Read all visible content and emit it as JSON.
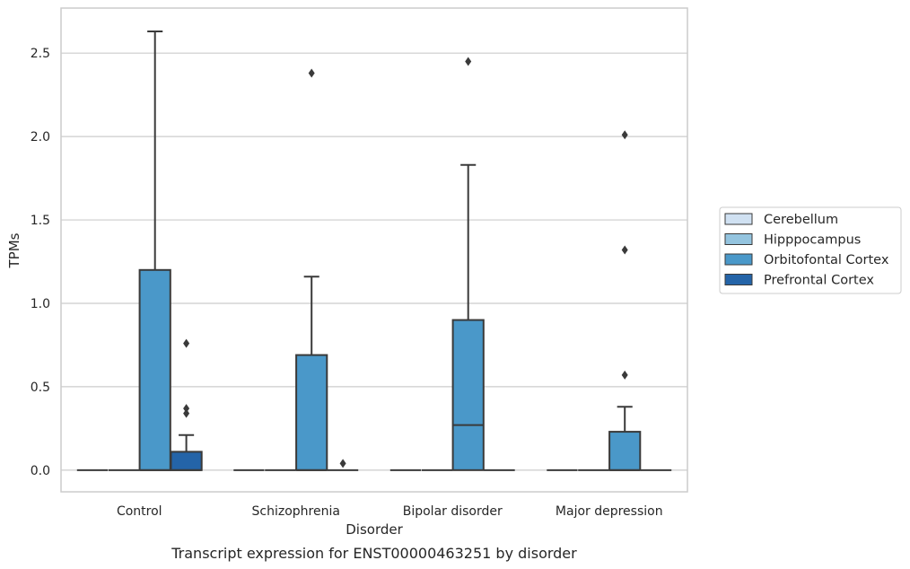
{
  "chart_data": {
    "type": "box",
    "caption": "Transcript expression for ENST00000463251 by disorder",
    "xlabel": "Disorder",
    "ylabel": "TPMs",
    "ylim": [
      -0.13,
      2.77
    ],
    "yticks": [
      0.0,
      0.5,
      1.0,
      1.5,
      2.0,
      2.5
    ],
    "ytick_labels": [
      "0.0",
      "0.5",
      "1.0",
      "1.5",
      "2.0",
      "2.5"
    ],
    "grid": "horizontal",
    "legend_position": "right",
    "categories": [
      "Control",
      "Schizophrenia",
      "Bipolar disorder",
      "Major depression"
    ],
    "series": [
      {
        "name": "Cerebellum",
        "color": "#d0e1f2",
        "boxes": [
          {
            "q1": 0,
            "median": 0,
            "q3": 0,
            "whisker_low": 0,
            "whisker_high": 0,
            "outliers": []
          },
          {
            "q1": 0,
            "median": 0,
            "q3": 0,
            "whisker_low": 0,
            "whisker_high": 0,
            "outliers": []
          },
          {
            "q1": 0,
            "median": 0,
            "q3": 0,
            "whisker_low": 0,
            "whisker_high": 0,
            "outliers": []
          },
          {
            "q1": 0,
            "median": 0,
            "q3": 0,
            "whisker_low": 0,
            "whisker_high": 0,
            "outliers": []
          }
        ]
      },
      {
        "name": "Hipppocampus",
        "color": "#94c4df",
        "boxes": [
          {
            "q1": 0,
            "median": 0,
            "q3": 0,
            "whisker_low": 0,
            "whisker_high": 0,
            "outliers": []
          },
          {
            "q1": 0,
            "median": 0,
            "q3": 0,
            "whisker_low": 0,
            "whisker_high": 0,
            "outliers": []
          },
          {
            "q1": 0,
            "median": 0,
            "q3": 0,
            "whisker_low": 0,
            "whisker_high": 0,
            "outliers": []
          },
          {
            "q1": 0,
            "median": 0,
            "q3": 0,
            "whisker_low": 0,
            "whisker_high": 0,
            "outliers": []
          }
        ]
      },
      {
        "name": "Orbitofontal Cortex",
        "color": "#4a98c9",
        "boxes": [
          {
            "q1": 0,
            "median": 0,
            "q3": 1.2,
            "whisker_low": 0,
            "whisker_high": 2.63,
            "outliers": []
          },
          {
            "q1": 0,
            "median": 0,
            "q3": 0.69,
            "whisker_low": 0,
            "whisker_high": 1.16,
            "outliers": [
              2.38
            ]
          },
          {
            "q1": 0,
            "median": 0.27,
            "q3": 0.9,
            "whisker_low": 0,
            "whisker_high": 1.83,
            "outliers": [
              2.45
            ]
          },
          {
            "q1": 0,
            "median": 0,
            "q3": 0.23,
            "whisker_low": 0,
            "whisker_high": 0.38,
            "outliers": [
              0.57,
              1.32,
              2.01
            ]
          }
        ]
      },
      {
        "name": "Prefrontal Cortex",
        "color": "#2464a8",
        "boxes": [
          {
            "q1": 0,
            "median": 0,
            "q3": 0.11,
            "whisker_low": 0,
            "whisker_high": 0.21,
            "outliers": [
              0.34,
              0.37,
              0.76
            ]
          },
          {
            "q1": 0,
            "median": 0,
            "q3": 0,
            "whisker_low": 0,
            "whisker_high": 0,
            "outliers": [
              0.04
            ]
          },
          {
            "q1": 0,
            "median": 0,
            "q3": 0,
            "whisker_low": 0,
            "whisker_high": 0,
            "outliers": []
          },
          {
            "q1": 0,
            "median": 0,
            "q3": 0,
            "whisker_low": 0,
            "whisker_high": 0,
            "outliers": []
          }
        ]
      }
    ]
  }
}
